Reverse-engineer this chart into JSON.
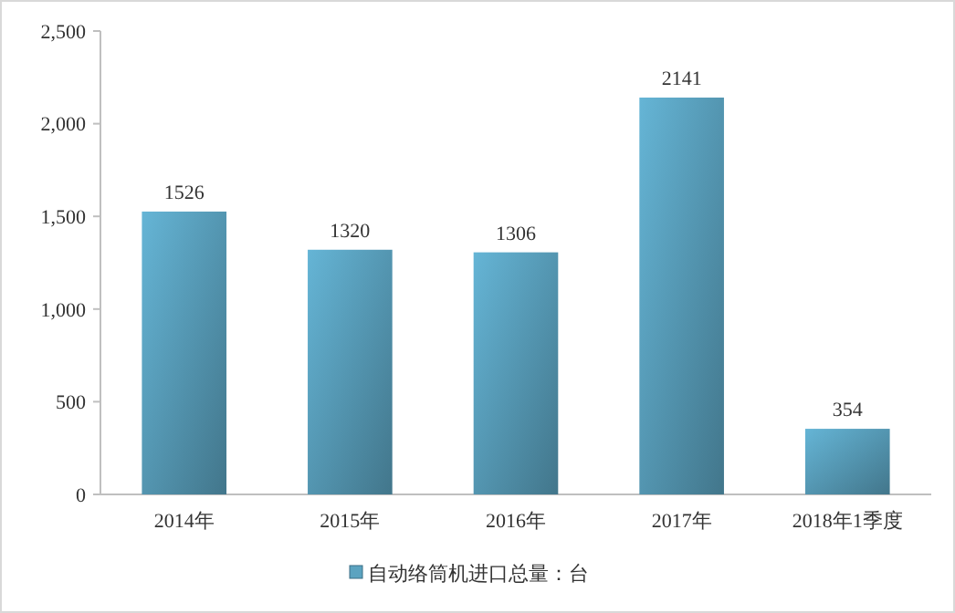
{
  "chart_data": {
    "type": "bar",
    "categories": [
      "2014年",
      "2015年",
      "2016年",
      "2017年",
      "2018年1季度"
    ],
    "series": [
      {
        "name": "自动络筒机进口总量：台",
        "color": "#5ba3c0",
        "values": [
          1526,
          1320,
          1306,
          2141,
          354
        ]
      }
    ],
    "ylim": [
      0,
      2500
    ],
    "yticks": [
      0,
      500,
      {
        "value": 1000,
        "label": "1,000"
      },
      {
        "value": 1500,
        "label": "1,500"
      },
      {
        "value": 2000,
        "label": "2,000"
      },
      {
        "value": 2500,
        "label": "2,500"
      }
    ],
    "data_labels": true,
    "legend": "bottom",
    "grid": false
  }
}
